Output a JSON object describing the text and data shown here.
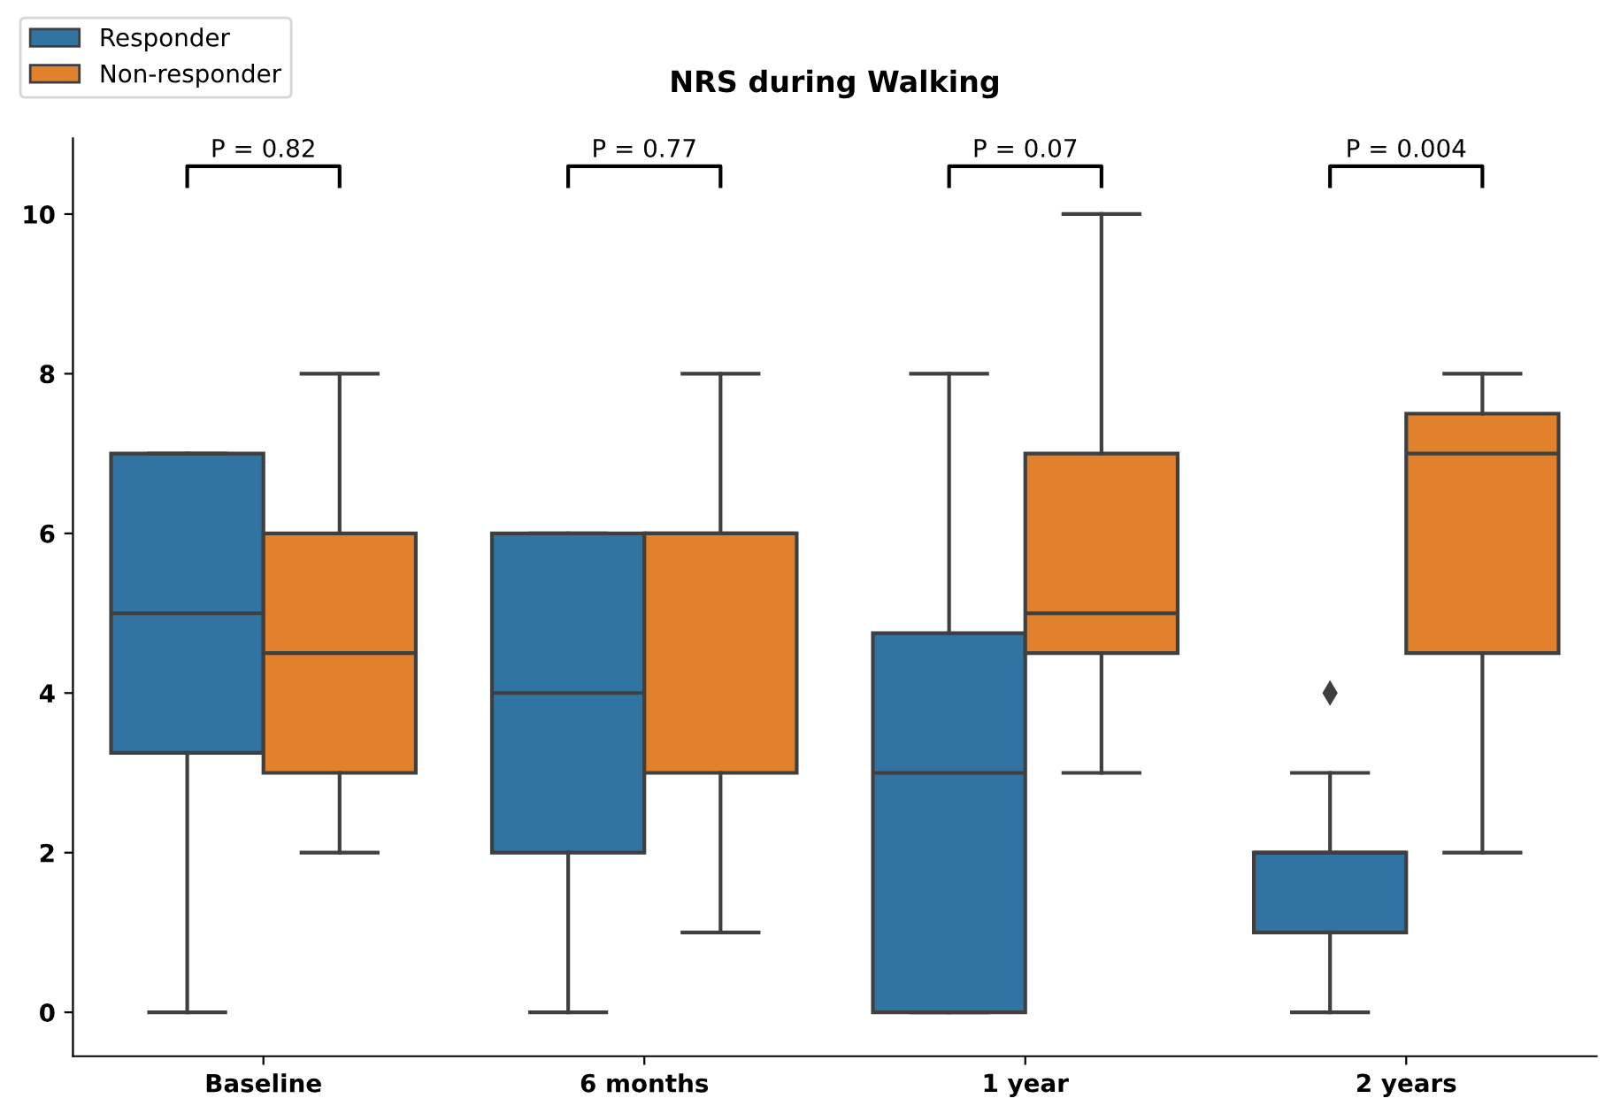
{
  "chart_data": {
    "type": "box",
    "title": "NRS during Walking",
    "categories": [
      "Baseline",
      "6 months",
      "1 year",
      "2 years"
    ],
    "series": [
      {
        "name": "Responder",
        "color": "#3274a1",
        "boxes": [
          {
            "low": 0,
            "q1": 3.25,
            "median": 5,
            "q3": 7,
            "high": 7
          },
          {
            "low": 0,
            "q1": 2,
            "median": 4,
            "q3": 6,
            "high": 6
          },
          {
            "low": 0,
            "q1": 0,
            "median": 3,
            "q3": 4.75,
            "high": 8
          },
          {
            "low": 0,
            "q1": 1,
            "median": 2,
            "q3": 2,
            "high": 3,
            "outliers": [
              4
            ]
          }
        ]
      },
      {
        "name": "Non-responder",
        "color": "#e1812c",
        "boxes": [
          {
            "low": 2,
            "q1": 3,
            "median": 4.5,
            "q3": 6,
            "high": 8
          },
          {
            "low": 1,
            "q1": 3,
            "median": 6,
            "q3": 6,
            "high": 8
          },
          {
            "low": 3,
            "q1": 4.5,
            "median": 5,
            "q3": 7,
            "high": 10
          },
          {
            "low": 2,
            "q1": 4.5,
            "median": 7,
            "q3": 7.5,
            "high": 8
          }
        ]
      }
    ],
    "annotations": [
      "P = 0.82",
      "P = 0.77",
      "P = 0.07",
      "P = 0.004"
    ],
    "ylim": [
      -0.55,
      10.95
    ],
    "yticks": [
      0,
      2,
      4,
      6,
      8,
      10
    ],
    "legend": "top left",
    "grid": false
  }
}
